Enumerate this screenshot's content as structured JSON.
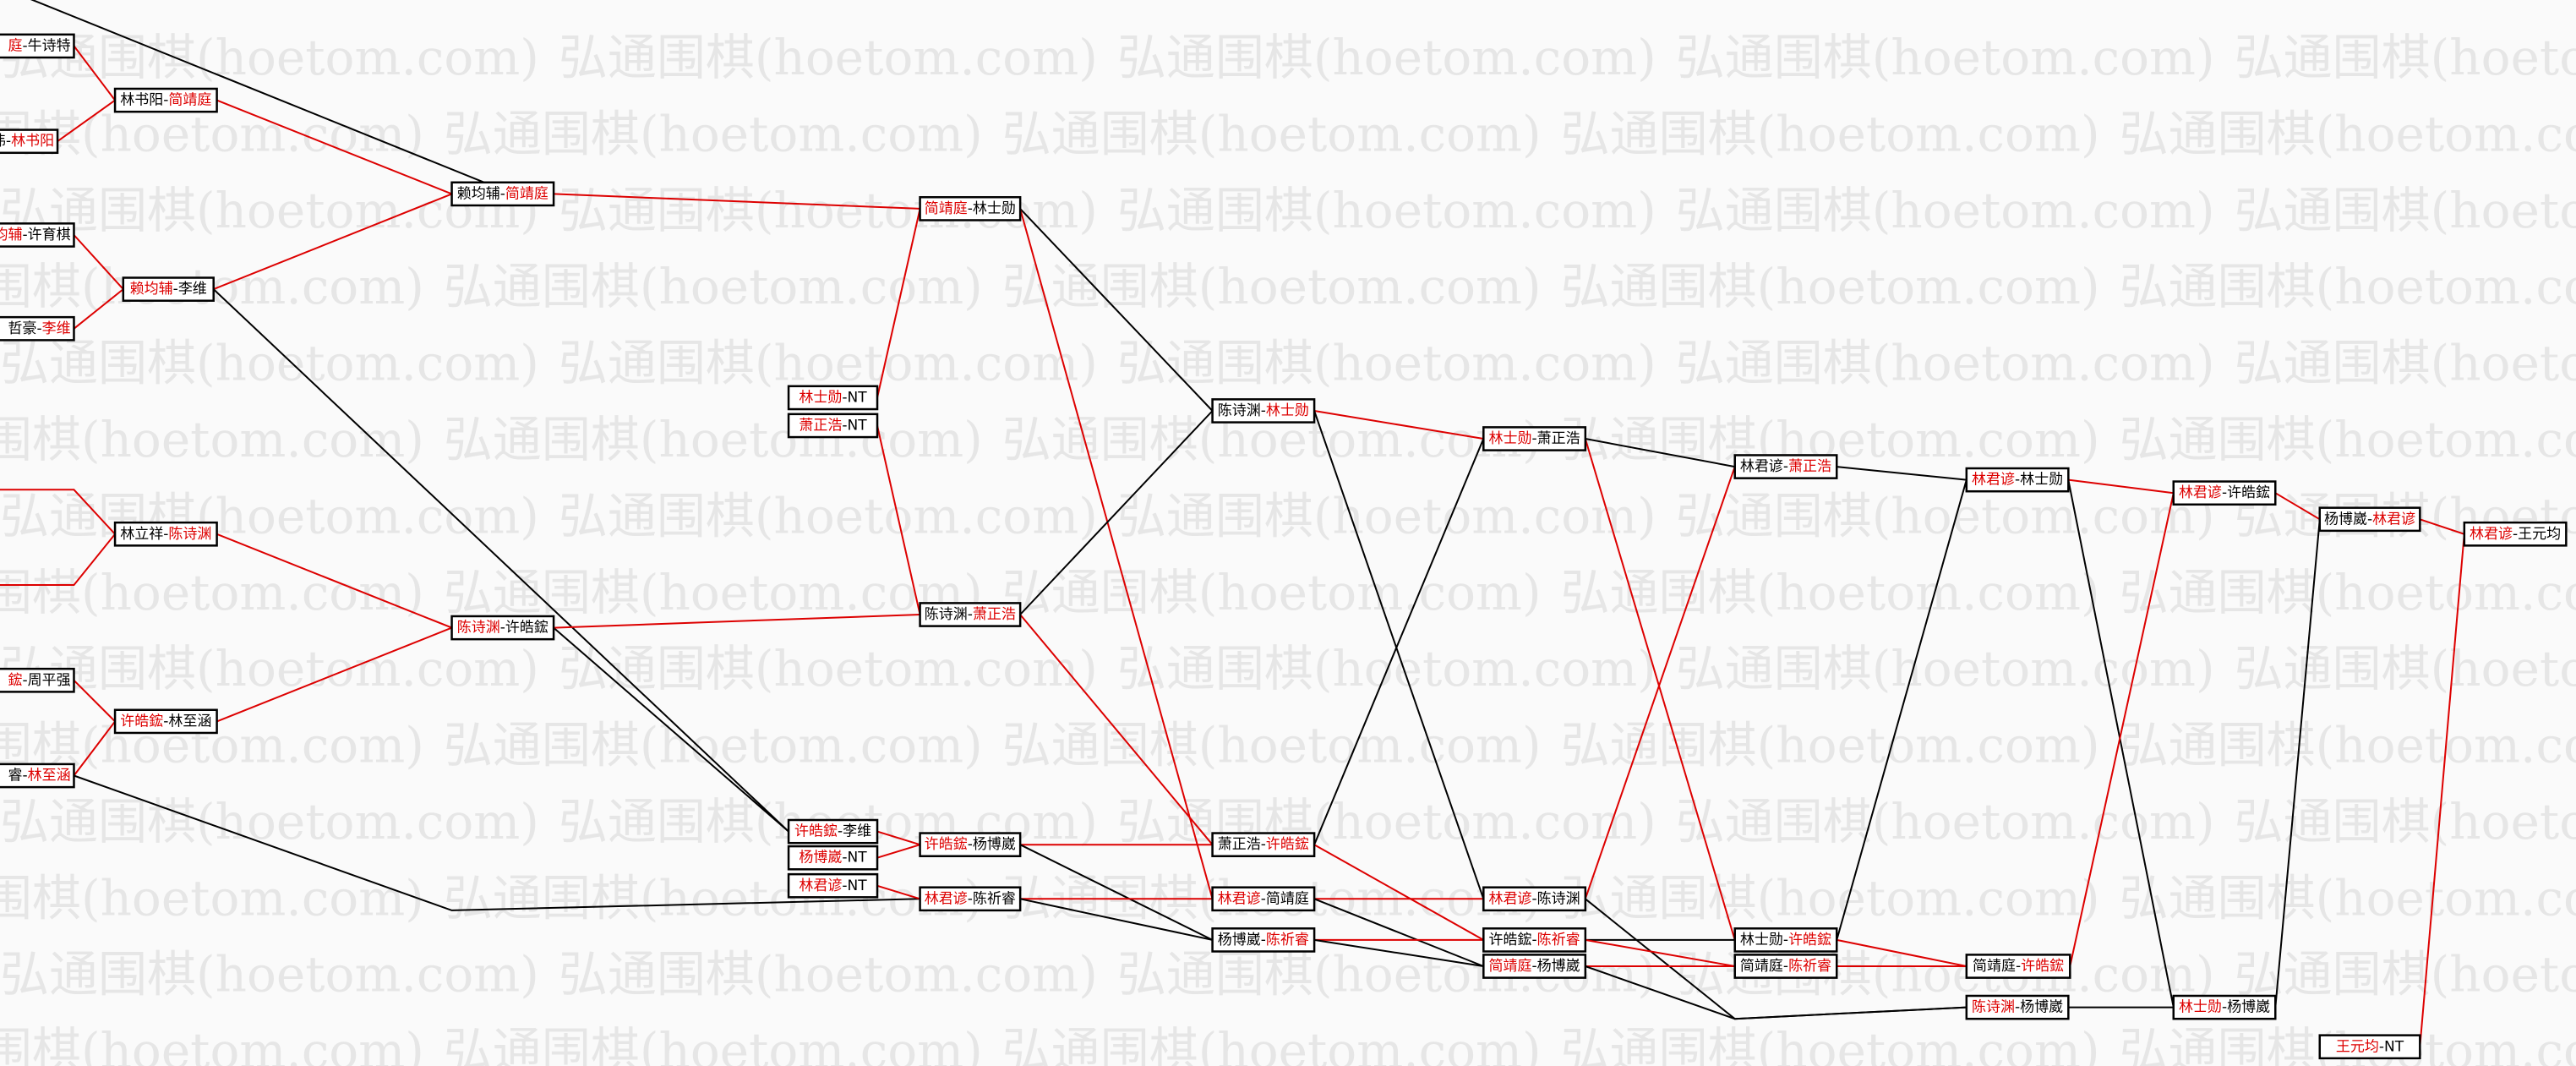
{
  "watermark": "弘通围棋(hoetom.com)",
  "separator": "-",
  "nodes": [
    {
      "p1": "庭",
      "p2": "牛诗特",
      "winner": 1
    },
    {
      "p1": "伟",
      "p2": "林书阳",
      "winner": 2
    },
    {
      "p1": "均辅",
      "p2": "许育棋",
      "winner": 1
    },
    {
      "p1": "哲豪",
      "p2": "李维",
      "winner": 2
    },
    {
      "p1": "鋐",
      "p2": "周平强",
      "winner": 1
    },
    {
      "p1": "睿",
      "p2": "林至涵",
      "winner": 2
    },
    {
      "p1": "林书阳",
      "p2": "简靖庭",
      "winner": 2
    },
    {
      "p1": "赖均辅",
      "p2": "李维",
      "winner": 1
    },
    {
      "p1": "林立祥",
      "p2": "陈诗渊",
      "winner": 2
    },
    {
      "p1": "许皓鋐",
      "p2": "林至涵",
      "winner": 1
    },
    {
      "p1": "赖均辅",
      "p2": "简靖庭",
      "winner": 2
    },
    {
      "p1": "陈诗渊",
      "p2": "许皓鋐",
      "winner": 1
    },
    {
      "p1": "林士勋",
      "p2": "NT",
      "winner": 1
    },
    {
      "p1": "萧正浩",
      "p2": "NT",
      "winner": 1
    },
    {
      "p1": "许皓鋐",
      "p2": "李维",
      "winner": 1
    },
    {
      "p1": "杨博崴",
      "p2": "NT",
      "winner": 1
    },
    {
      "p1": "林君谚",
      "p2": "NT",
      "winner": 1
    },
    {
      "p1": "简靖庭",
      "p2": "林士勋",
      "winner": 1
    },
    {
      "p1": "陈诗渊",
      "p2": "萧正浩",
      "winner": 2
    },
    {
      "p1": "许皓鋐",
      "p2": "杨博崴",
      "winner": 1
    },
    {
      "p1": "林君谚",
      "p2": "陈祈睿",
      "winner": 1
    },
    {
      "p1": "陈诗渊",
      "p2": "林士勋",
      "winner": 2
    },
    {
      "p1": "萧正浩",
      "p2": "许皓鋐",
      "winner": 2
    },
    {
      "p1": "林君谚",
      "p2": "简靖庭",
      "winner": 1
    },
    {
      "p1": "杨博崴",
      "p2": "陈祈睿",
      "winner": 2
    },
    {
      "p1": "林士勋",
      "p2": "萧正浩",
      "winner": 1
    },
    {
      "p1": "林君谚",
      "p2": "陈诗渊",
      "winner": 1
    },
    {
      "p1": "许皓鋐",
      "p2": "陈祈睿",
      "winner": 2
    },
    {
      "p1": "简靖庭",
      "p2": "杨博崴",
      "winner": 1
    },
    {
      "p1": "林君谚",
      "p2": "萧正浩",
      "winner": 2
    },
    {
      "p1": "林士勋",
      "p2": "许皓鋐",
      "winner": 2
    },
    {
      "p1": "简靖庭",
      "p2": "陈祈睿",
      "winner": 2
    },
    {
      "p1": "林君谚",
      "p2": "林士勋",
      "winner": 1
    },
    {
      "p1": "简靖庭",
      "p2": "许皓鋐",
      "winner": 2
    },
    {
      "p1": "陈诗渊",
      "p2": "杨博崴",
      "winner": 1
    },
    {
      "p1": "林君谚",
      "p2": "许皓鋐",
      "winner": 1
    },
    {
      "p1": "林士勋",
      "p2": "杨博崴",
      "winner": 1
    },
    {
      "p1": "杨博崴",
      "p2": "林君谚",
      "winner": 2
    },
    {
      "p1": "王元均",
      "p2": "NT",
      "winner": 1
    },
    {
      "p1": "林君谚",
      "p2": "王元均",
      "winner": 1
    }
  ]
}
